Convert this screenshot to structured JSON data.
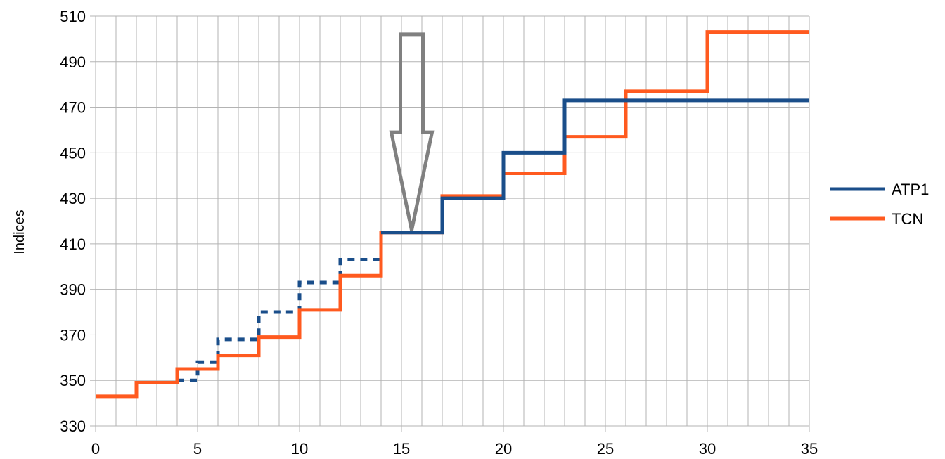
{
  "chart_data": {
    "type": "line",
    "title": "",
    "xlabel": "",
    "ylabel": "Indices",
    "xlim": [
      0,
      35
    ],
    "ylim": [
      330,
      510
    ],
    "x_major_ticks": [
      0,
      5,
      10,
      15,
      20,
      25,
      30,
      35
    ],
    "x_minor_step": 1,
    "y_ticks": [
      330,
      350,
      370,
      390,
      410,
      430,
      450,
      470,
      490,
      510
    ],
    "grid": true,
    "legend_position": "right",
    "series": [
      {
        "name": "ATP1",
        "color": "#1a4e8a",
        "step": true,
        "points": [
          [
            14,
            415
          ],
          [
            17,
            430
          ],
          [
            20,
            450
          ],
          [
            23,
            473
          ],
          [
            35,
            473
          ]
        ]
      },
      {
        "name": "",
        "color": "#1a4e8a",
        "style": "dotted",
        "step": true,
        "points": [
          [
            4,
            350
          ],
          [
            5,
            358
          ],
          [
            6,
            368
          ],
          [
            8,
            380
          ],
          [
            10,
            393
          ],
          [
            12,
            403
          ],
          [
            14,
            403
          ]
        ]
      },
      {
        "name": "TCN",
        "color": "#ff5a1f",
        "step": true,
        "points": [
          [
            0,
            343
          ],
          [
            2,
            349
          ],
          [
            4,
            355
          ],
          [
            6,
            361
          ],
          [
            8,
            369
          ],
          [
            10,
            381
          ],
          [
            12,
            396
          ],
          [
            14,
            415
          ],
          [
            17,
            431
          ],
          [
            20,
            441
          ],
          [
            23,
            457
          ],
          [
            26,
            477
          ],
          [
            30,
            503
          ],
          [
            35,
            503
          ]
        ]
      }
    ],
    "annotations": [
      {
        "type": "arrow-down",
        "x": 15.5,
        "y_top": 502,
        "y_bottom": 416,
        "color": "#808080"
      }
    ]
  }
}
